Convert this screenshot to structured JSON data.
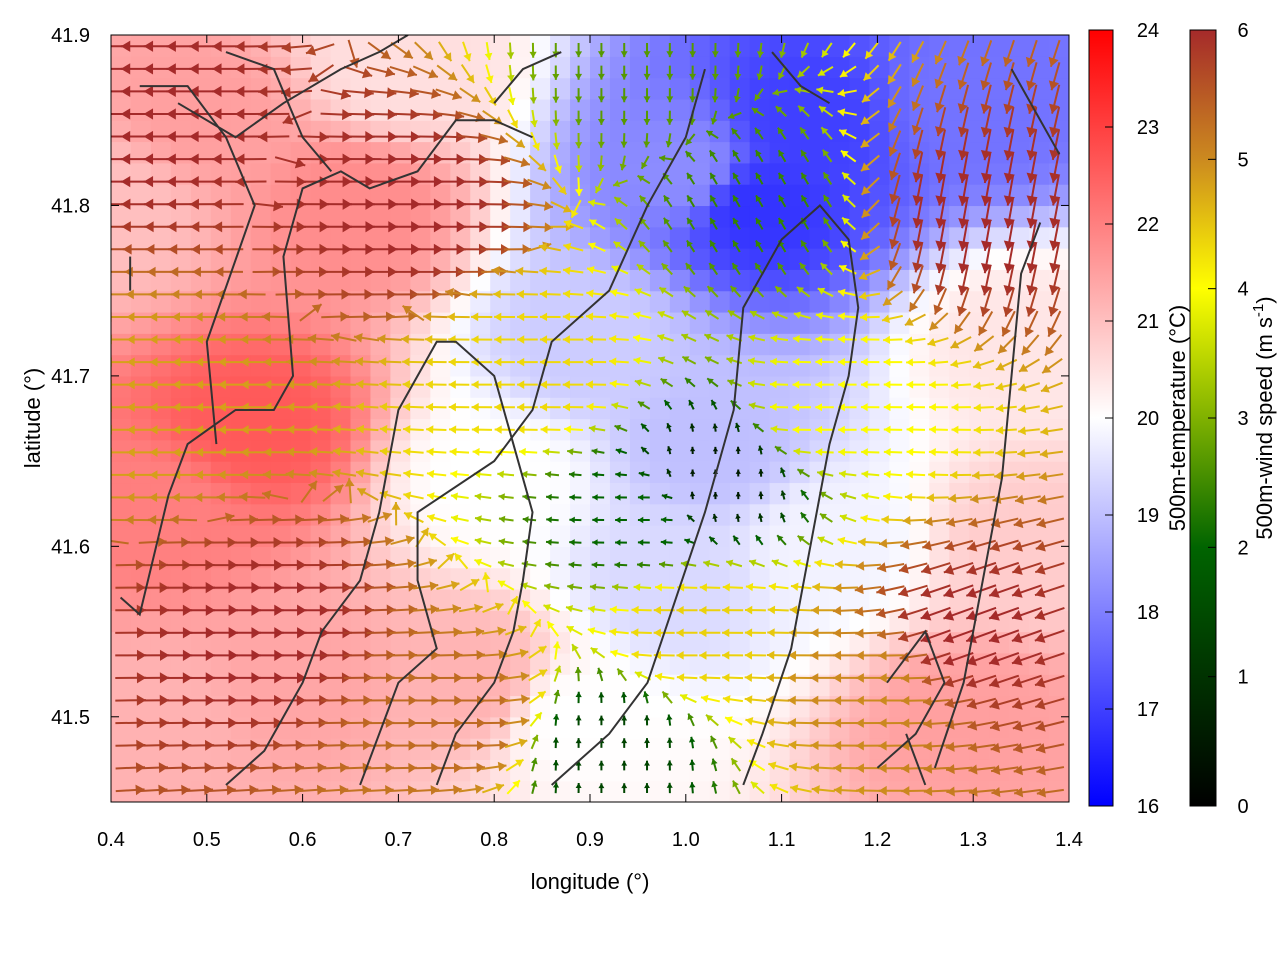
{
  "chart_data": {
    "type": "heatmap",
    "title": "",
    "xlabel": "longitude (°)",
    "ylabel": "latitude (°)",
    "xlim": [
      0.4,
      1.4
    ],
    "ylim": [
      41.45,
      41.9
    ],
    "x_ticks": [
      "0.4",
      "0.5",
      "0.6",
      "0.7",
      "0.8",
      "0.9",
      "1.0",
      "1.1",
      "1.2",
      "1.3",
      "1.4"
    ],
    "y_ticks": [
      "41.5",
      "41.6",
      "41.7",
      "41.8",
      "41.9"
    ],
    "temperature": {
      "colorbar_label": "500m-temperature (°C)",
      "range": [
        16,
        24
      ],
      "ticks": [
        "16",
        "17",
        "18",
        "19",
        "20",
        "21",
        "22",
        "23",
        "24"
      ],
      "colors": [
        "#0000ff",
        "#ffffff",
        "#ff0000"
      ],
      "field_points": [
        {
          "x": 1.07,
          "y": 41.8,
          "t": 16.8
        },
        {
          "x": 1.12,
          "y": 41.85,
          "t": 17.0
        },
        {
          "x": 1.3,
          "y": 41.86,
          "t": 17.8
        },
        {
          "x": 1.0,
          "y": 41.82,
          "t": 18.2
        },
        {
          "x": 0.9,
          "y": 41.72,
          "t": 19.2
        },
        {
          "x": 1.03,
          "y": 41.66,
          "t": 19.0
        },
        {
          "x": 0.98,
          "y": 41.58,
          "t": 19.4
        },
        {
          "x": 1.15,
          "y": 41.6,
          "t": 19.8
        },
        {
          "x": 0.88,
          "y": 41.5,
          "t": 20.0
        },
        {
          "x": 0.8,
          "y": 41.64,
          "t": 20.0
        },
        {
          "x": 0.55,
          "y": 41.67,
          "t": 22.6
        },
        {
          "x": 0.45,
          "y": 41.62,
          "t": 22.0
        },
        {
          "x": 0.6,
          "y": 41.52,
          "t": 21.4
        },
        {
          "x": 0.45,
          "y": 41.5,
          "t": 21.2
        },
        {
          "x": 0.5,
          "y": 41.85,
          "t": 21.5
        },
        {
          "x": 0.65,
          "y": 41.8,
          "t": 21.8
        },
        {
          "x": 0.78,
          "y": 41.52,
          "t": 21.2
        },
        {
          "x": 1.3,
          "y": 41.5,
          "t": 21.5
        },
        {
          "x": 1.36,
          "y": 41.6,
          "t": 20.8
        },
        {
          "x": 1.35,
          "y": 41.72,
          "t": 20.4
        },
        {
          "x": 0.4,
          "y": 41.8,
          "t": 21.0
        },
        {
          "x": 0.7,
          "y": 41.88,
          "t": 20.5
        }
      ]
    },
    "wind_speed": {
      "colorbar_label": "500m-wind speed (m s",
      "colorbar_label_exponent": "-1",
      "colorbar_label_close": ")",
      "range": [
        0,
        6
      ],
      "ticks": [
        "0",
        "1",
        "2",
        "3",
        "4",
        "5",
        "6"
      ],
      "colors": [
        "#000000",
        "#006400",
        "#ffff00",
        "#cc8a1f",
        "#a52a2a"
      ],
      "field_points": [
        {
          "x": 0.45,
          "y": 41.85,
          "s": 6,
          "dir": 180
        },
        {
          "x": 0.45,
          "y": 41.68,
          "s": 4.2,
          "dir": 180
        },
        {
          "x": 0.55,
          "y": 41.55,
          "s": 6,
          "dir": 0
        },
        {
          "x": 0.7,
          "y": 41.8,
          "s": 6,
          "dir": 0
        },
        {
          "x": 0.85,
          "y": 41.7,
          "s": 3.5,
          "dir": 180
        },
        {
          "x": 0.95,
          "y": 41.62,
          "s": 1.5,
          "dir": 180
        },
        {
          "x": 1.03,
          "y": 41.64,
          "s": 0.4,
          "dir": 90
        },
        {
          "x": 1.08,
          "y": 41.8,
          "s": 1.8,
          "dir": 120
        },
        {
          "x": 1.15,
          "y": 41.68,
          "s": 3.0,
          "dir": 180
        },
        {
          "x": 1.3,
          "y": 41.8,
          "s": 6,
          "dir": 260
        },
        {
          "x": 1.3,
          "y": 41.55,
          "s": 6,
          "dir": 200
        },
        {
          "x": 1.2,
          "y": 41.52,
          "s": 4.5,
          "dir": 180
        },
        {
          "x": 0.92,
          "y": 41.48,
          "s": 1.0,
          "dir": 90
        },
        {
          "x": 1.02,
          "y": 41.55,
          "s": 3.6,
          "dir": 180
        },
        {
          "x": 0.75,
          "y": 41.5,
          "s": 5.0,
          "dir": 0
        },
        {
          "x": 0.95,
          "y": 41.88,
          "s": 2.0,
          "dir": 270
        }
      ]
    },
    "contours": [
      [
        [
          0.42,
          41.75
        ],
        [
          0.42,
          41.77
        ]
      ],
      [
        [
          0.41,
          41.57
        ],
        [
          0.43,
          41.56
        ],
        [
          0.46,
          41.63
        ],
        [
          0.48,
          41.66
        ],
        [
          0.53,
          41.68
        ],
        [
          0.57,
          41.68
        ],
        [
          0.59,
          41.7
        ],
        [
          0.58,
          41.77
        ],
        [
          0.6,
          41.81
        ],
        [
          0.64,
          41.82
        ],
        [
          0.67,
          41.81
        ],
        [
          0.72,
          41.82
        ],
        [
          0.76,
          41.85
        ],
        [
          0.8,
          41.85
        ],
        [
          0.84,
          41.84
        ]
      ],
      [
        [
          0.52,
          41.46
        ],
        [
          0.56,
          41.48
        ],
        [
          0.58,
          41.5
        ],
        [
          0.6,
          41.52
        ],
        [
          0.62,
          41.55
        ],
        [
          0.66,
          41.58
        ],
        [
          0.68,
          41.62
        ],
        [
          0.7,
          41.68
        ],
        [
          0.74,
          41.72
        ],
        [
          0.76,
          41.72
        ],
        [
          0.8,
          41.7
        ],
        [
          0.82,
          41.66
        ],
        [
          0.84,
          41.62
        ],
        [
          0.83,
          41.58
        ],
        [
          0.82,
          41.55
        ],
        [
          0.8,
          41.52
        ],
        [
          0.76,
          41.49
        ],
        [
          0.74,
          41.46
        ]
      ],
      [
        [
          0.66,
          41.46
        ],
        [
          0.7,
          41.52
        ],
        [
          0.74,
          41.54
        ],
        [
          0.72,
          41.58
        ],
        [
          0.72,
          41.62
        ],
        [
          0.8,
          41.65
        ],
        [
          0.84,
          41.68
        ],
        [
          0.86,
          41.72
        ],
        [
          0.92,
          41.75
        ],
        [
          0.96,
          41.8
        ],
        [
          1.0,
          41.84
        ],
        [
          1.02,
          41.88
        ]
      ],
      [
        [
          0.86,
          41.46
        ],
        [
          0.92,
          41.49
        ],
        [
          0.96,
          41.52
        ],
        [
          0.99,
          41.57
        ],
        [
          1.02,
          41.62
        ],
        [
          1.05,
          41.68
        ],
        [
          1.06,
          41.74
        ],
        [
          1.1,
          41.78
        ],
        [
          1.14,
          41.8
        ],
        [
          1.17,
          41.78
        ],
        [
          1.18,
          41.74
        ],
        [
          1.17,
          41.7
        ],
        [
          1.15,
          41.66
        ],
        [
          1.13,
          41.6
        ],
        [
          1.11,
          41.54
        ],
        [
          1.08,
          41.49
        ],
        [
          1.06,
          41.46
        ]
      ],
      [
        [
          0.47,
          41.86
        ],
        [
          0.53,
          41.84
        ],
        [
          0.58,
          41.86
        ],
        [
          0.64,
          41.88
        ],
        [
          0.68,
          41.89
        ],
        [
          0.71,
          41.9
        ]
      ],
      [
        [
          0.52,
          41.89
        ],
        [
          0.57,
          41.88
        ],
        [
          0.6,
          41.84
        ],
        [
          0.63,
          41.82
        ]
      ],
      [
        [
          0.43,
          41.87
        ],
        [
          0.48,
          41.87
        ],
        [
          0.52,
          41.84
        ],
        [
          0.55,
          41.8
        ],
        [
          0.5,
          41.72
        ],
        [
          0.51,
          41.66
        ]
      ],
      [
        [
          0.8,
          41.86
        ],
        [
          0.83,
          41.88
        ],
        [
          0.87,
          41.89
        ]
      ],
      [
        [
          1.09,
          41.89
        ],
        [
          1.12,
          41.87
        ],
        [
          1.15,
          41.86
        ]
      ],
      [
        [
          1.2,
          41.47
        ],
        [
          1.24,
          41.49
        ],
        [
          1.27,
          41.52
        ],
        [
          1.25,
          41.55
        ],
        [
          1.21,
          41.52
        ]
      ],
      [
        [
          1.23,
          41.49
        ],
        [
          1.25,
          41.46
        ]
      ],
      [
        [
          1.26,
          41.47
        ],
        [
          1.29,
          41.52
        ],
        [
          1.31,
          41.58
        ],
        [
          1.33,
          41.64
        ],
        [
          1.34,
          41.7
        ],
        [
          1.35,
          41.76
        ],
        [
          1.37,
          41.79
        ]
      ],
      [
        [
          1.34,
          41.88
        ],
        [
          1.37,
          41.85
        ],
        [
          1.39,
          41.83
        ]
      ]
    ]
  }
}
